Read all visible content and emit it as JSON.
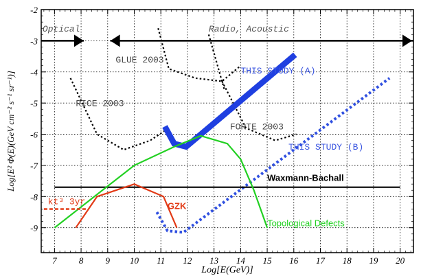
{
  "chart_data": {
    "type": "line",
    "xlabel": "Log[E(GeV)]",
    "ylabel": "Log[E² Φ(E)(GeV cm⁻² s⁻¹ sr⁻¹)]",
    "xlim": [
      6.5,
      20.5
    ],
    "ylim": [
      -9.8,
      -2.0
    ],
    "x_ticks": [
      "7",
      "8",
      "9",
      "10",
      "11",
      "12",
      "13",
      "14",
      "15",
      "16",
      "17",
      "18",
      "19",
      "20"
    ],
    "y_ticks": [
      "-2",
      "-3",
      "-4",
      "-5",
      "-6",
      "-7",
      "-8",
      "-9"
    ],
    "bands": [
      {
        "label": "Optical",
        "x": [
          6.5,
          8.1
        ],
        "y": -3.0
      },
      {
        "label": "Radio, Acoustic",
        "x": [
          9.1,
          20.5
        ],
        "y": -3.0
      }
    ],
    "series": [
      {
        "name": "GLUE 2003",
        "style": "dotted",
        "color": "#000000",
        "x": [
          10.9,
          11.3,
          12.3,
          13.3,
          14.0
        ],
        "y": [
          -2.6,
          -3.9,
          -4.2,
          -4.3,
          -3.8
        ]
      },
      {
        "name": "",
        "style": "dotted",
        "color": "#000000",
        "x": [
          12.8,
          13.4
        ],
        "y": [
          -2.8,
          -4.6
        ]
      },
      {
        "name": "RICE 2003",
        "style": "dotted",
        "color": "#000000",
        "x": [
          7.6,
          8.6,
          9.6,
          10.6,
          11.3
        ],
        "y": [
          -4.2,
          -6.0,
          -6.5,
          -6.2,
          -5.8
        ]
      },
      {
        "name": "FORTE 2003",
        "style": "dotted",
        "color": "#000000",
        "x": [
          13.3,
          14.2,
          15.3,
          16.1
        ],
        "y": [
          -4.3,
          -5.8,
          -6.2,
          -6.0
        ]
      },
      {
        "name": "THIS STUDY (A)",
        "style": "solid-thick",
        "color": "#1f3fe0",
        "x": [
          11.15,
          11.5,
          11.95,
          16.05
        ],
        "y": [
          -5.75,
          -6.3,
          -6.4,
          -3.45
        ]
      },
      {
        "name": "THIS STUDY (B)",
        "style": "dotted-thick",
        "color": "#3050e0",
        "x": [
          10.85,
          11.25,
          11.85,
          19.6
        ],
        "y": [
          -8.5,
          -9.1,
          -9.15,
          -4.2
        ]
      },
      {
        "name": "Waxmann-Bachall",
        "style": "solid",
        "color": "#000000",
        "x": [
          7.0,
          20.0
        ],
        "y": [
          -7.7,
          -7.7
        ]
      },
      {
        "name": "Topological Defects",
        "style": "solid",
        "color": "#22d022",
        "x": [
          7.0,
          8.5,
          10.0,
          11.5,
          12.5,
          13.5,
          14.0,
          14.5,
          15.0
        ],
        "y": [
          -9.0,
          -8.0,
          -7.0,
          -6.4,
          -6.05,
          -6.3,
          -6.8,
          -7.8,
          -9.0
        ]
      },
      {
        "name": "GZK",
        "style": "solid",
        "color": "#e23a16",
        "x": [
          7.8,
          8.6,
          10.0,
          11.1,
          11.6
        ],
        "y": [
          -9.0,
          -8.0,
          -7.6,
          -8.0,
          -9.0
        ]
      },
      {
        "name": "kt³ 3yr",
        "style": "dashed",
        "color": "#e23a16",
        "x": [
          6.6,
          8.2
        ],
        "y": [
          -8.4,
          -8.4
        ]
      }
    ],
    "labels": [
      {
        "text": "Optical",
        "x": 6.55,
        "y": -2.7,
        "color": "#555555",
        "font": "mono"
      },
      {
        "text": "Radio, Acoustic",
        "x": 12.8,
        "y": -2.7,
        "color": "#555555",
        "font": "mono"
      },
      {
        "text": "GLUE 2003",
        "x": 9.3,
        "y": -3.7,
        "color": "#444444",
        "font": "mono"
      },
      {
        "text": "RICE 2003",
        "x": 7.8,
        "y": -5.1,
        "color": "#444444",
        "font": "mono"
      },
      {
        "text": "FORTE 2003",
        "x": 13.6,
        "y": -5.85,
        "color": "#444444",
        "font": "mono"
      },
      {
        "text": "THIS STUDY (A)",
        "x": 14.0,
        "y": -4.05,
        "color": "#3a55e0",
        "font": "mono"
      },
      {
        "text": "THIS STUDY (B)",
        "x": 15.8,
        "y": -6.5,
        "color": "#3a55e0",
        "font": "mono"
      },
      {
        "text": "Waxmann-Bachall",
        "x": 15.0,
        "y": -7.5,
        "color": "#000000",
        "font": "sans-bold"
      },
      {
        "text": "Topological Defects",
        "x": 15.0,
        "y": -8.95,
        "color": "#22d022",
        "font": "sans"
      },
      {
        "text": "GZK",
        "x": 11.25,
        "y": -8.4,
        "color": "#e23a16",
        "font": "sans-bold"
      },
      {
        "text": "kt³ 3yr",
        "x": 6.75,
        "y": -8.25,
        "color": "#e23a16",
        "font": "mono"
      }
    ],
    "grid": true
  }
}
